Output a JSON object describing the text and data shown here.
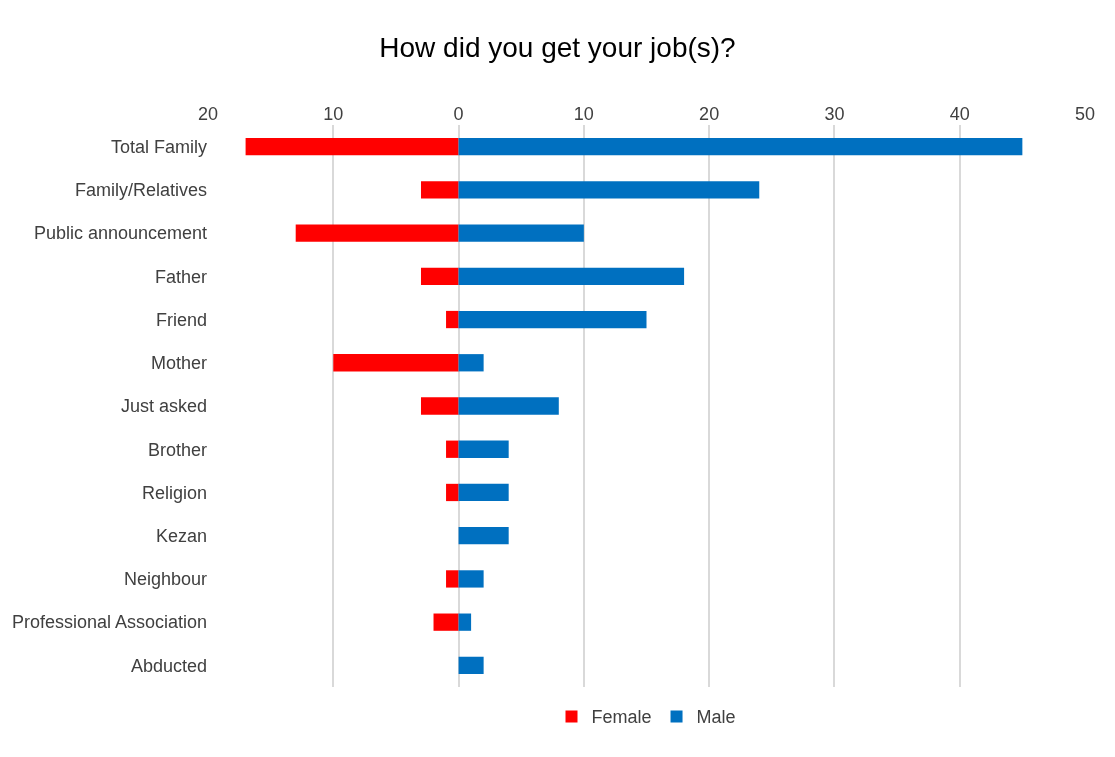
{
  "chart_data": {
    "type": "bar",
    "title": "How did you get your job(s)?",
    "orientation": "horizontal",
    "stacked": true,
    "categories": [
      "Total Family",
      "Family/Relatives",
      "Public announcement",
      "Father",
      "Friend",
      "Mother",
      "Just asked",
      "Brother",
      "Religion",
      "Kezan",
      "Neighbour",
      "Professional Association",
      "Abducted"
    ],
    "series": [
      {
        "name": "Female",
        "color": "#ff0000",
        "values": [
          -17,
          -3,
          -13,
          -3,
          -1,
          -10,
          -3,
          -1,
          -1,
          0,
          -1,
          -2,
          0
        ]
      },
      {
        "name": "Male",
        "color": "#0070c0",
        "values": [
          45,
          24,
          10,
          18,
          15,
          2,
          8,
          4,
          4,
          4,
          2,
          1,
          2
        ]
      }
    ],
    "xlim": [
      -20,
      50
    ],
    "xticks": [
      {
        "value": -20,
        "label": "20"
      },
      {
        "value": -10,
        "label": "10"
      },
      0,
      10,
      20,
      30,
      40,
      50
    ],
    "grid": "x",
    "legend": "bottom"
  }
}
